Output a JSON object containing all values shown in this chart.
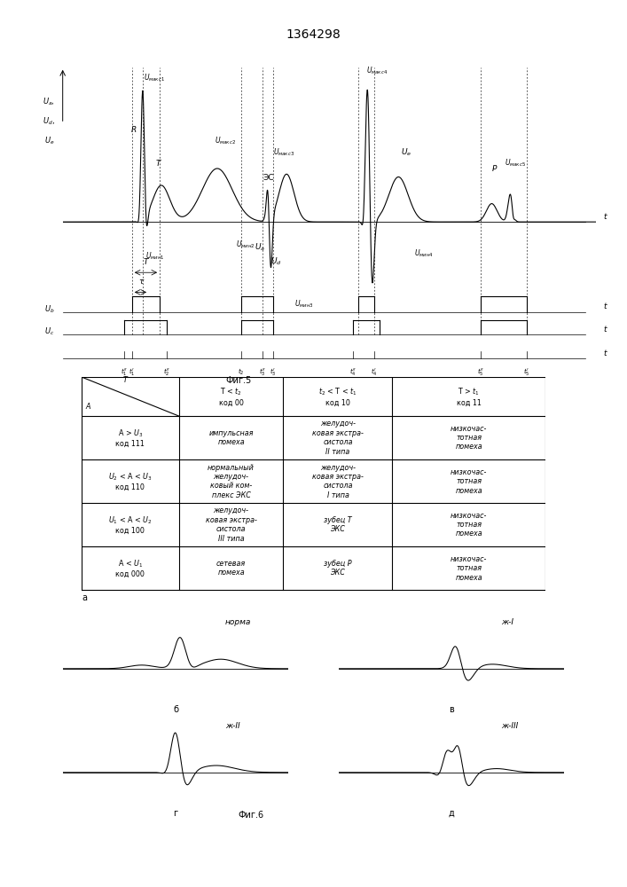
{
  "title": "1364298",
  "title_fontsize": 10,
  "bg_color": "#ffffff",
  "fig5_label": "Фиг.5",
  "fig6_label": "Фиг.6"
}
